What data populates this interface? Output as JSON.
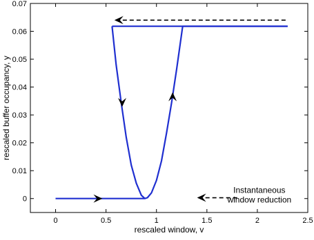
{
  "chart_data": {
    "type": "line",
    "title": "",
    "xlabel": "rescaled window, v",
    "ylabel": "rescaled buffer occupancy, y",
    "xlim": [
      -0.25,
      2.5
    ],
    "ylim": [
      -0.005,
      0.07
    ],
    "xticks": [
      0,
      0.5,
      1,
      1.5,
      2,
      2.5
    ],
    "xtick_labels": [
      "0",
      "0.5",
      "1",
      "1.5",
      "2",
      "2.5"
    ],
    "yticks": [
      0,
      0.01,
      0.02,
      0.03,
      0.04,
      0.05,
      0.06,
      0.07
    ],
    "ytick_labels": [
      "0",
      "0.01",
      "0.02",
      "0.03",
      "0.04",
      "0.05",
      "0.06",
      "0.07"
    ],
    "grid": false,
    "series": [
      {
        "color": "#1f2fd0",
        "x": [
          0,
          0.885,
          0.91,
          0.95,
          1.0,
          1.05,
          1.1,
          1.15,
          1.2,
          1.26,
          2.3
        ],
        "y": [
          0,
          0,
          0.0003,
          0.002,
          0.0065,
          0.0135,
          0.0235,
          0.0345,
          0.0465,
          0.0618,
          0.0618
        ]
      },
      {
        "color": "#1f2fd0",
        "x": [
          0.56,
          0.6,
          0.65,
          0.7,
          0.75,
          0.8,
          0.85,
          0.885
        ],
        "y": [
          0.0618,
          0.048,
          0.0345,
          0.022,
          0.012,
          0.0055,
          0.0012,
          0
        ]
      },
      {
        "color": "#1f2fd0",
        "x": [
          0.56,
          2.3
        ],
        "y": [
          0.0618,
          0.0618
        ]
      }
    ],
    "dashed_arrows": [
      {
        "x": [
          2.28,
          0.6
        ],
        "y": [
          0.064,
          0.064
        ],
        "color": "#000000"
      },
      {
        "x": [
          1.8,
          1.42
        ],
        "y": [
          0.0003,
          0.0003
        ],
        "color": "#000000"
      }
    ],
    "direction_arrows": [
      {
        "x": 0.42,
        "y": 0,
        "dir": "right"
      },
      {
        "x": 0.66,
        "y": 0.0345,
        "dir": "down"
      },
      {
        "x": 1.16,
        "y": 0.0365,
        "dir": "up"
      }
    ],
    "annotations": [
      {
        "lines": [
          "Instantaneous",
          "window reduction"
        ],
        "x": 2.02,
        "y": 0.0003
      }
    ]
  }
}
